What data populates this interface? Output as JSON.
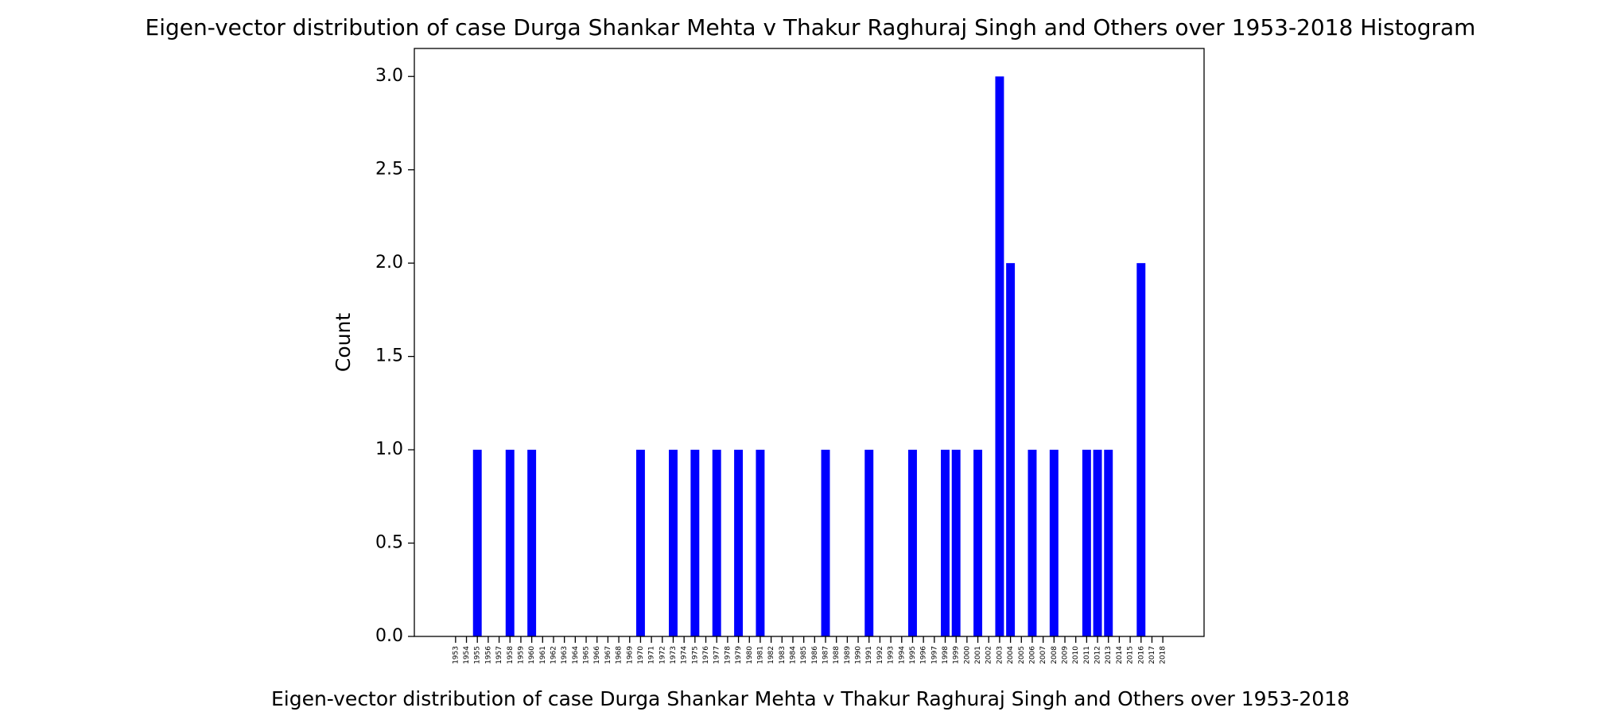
{
  "chart_data": {
    "type": "bar",
    "title": "Eigen-vector distribution of case Durga Shankar Mehta v Thakur Raghuraj Singh and Others over 1953-2018 Histogram",
    "xlabel": "Eigen-vector distribution of case Durga Shankar Mehta v Thakur Raghuraj Singh and Others over 1953-2018",
    "ylabel": "Count",
    "categories": [
      "1953",
      "1954",
      "1955",
      "1956",
      "1957",
      "1958",
      "1959",
      "1960",
      "1961",
      "1962",
      "1963",
      "1964",
      "1965",
      "1966",
      "1967",
      "1968",
      "1969",
      "1970",
      "1971",
      "1972",
      "1973",
      "1974",
      "1975",
      "1976",
      "1977",
      "1978",
      "1979",
      "1980",
      "1981",
      "1982",
      "1983",
      "1984",
      "1985",
      "1986",
      "1987",
      "1988",
      "1989",
      "1990",
      "1991",
      "1992",
      "1993",
      "1994",
      "1995",
      "1996",
      "1997",
      "1998",
      "1999",
      "2000",
      "2001",
      "2002",
      "2003",
      "2004",
      "2005",
      "2006",
      "2007",
      "2008",
      "2009",
      "2010",
      "2011",
      "2012",
      "2013",
      "2014",
      "2015",
      "2016",
      "2017",
      "2018"
    ],
    "values": [
      0,
      0,
      1,
      0,
      0,
      1,
      0,
      1,
      0,
      0,
      0,
      0,
      0,
      0,
      0,
      0,
      0,
      1,
      0,
      0,
      1,
      0,
      1,
      0,
      1,
      0,
      1,
      0,
      1,
      0,
      0,
      0,
      0,
      0,
      1,
      0,
      0,
      0,
      1,
      0,
      0,
      0,
      1,
      0,
      0,
      1,
      1,
      0,
      1,
      0,
      3,
      2,
      0,
      1,
      0,
      1,
      0,
      0,
      1,
      1,
      1,
      0,
      0,
      2,
      0,
      0
    ],
    "color": "#0000ff",
    "ylim": [
      0,
      3.15
    ],
    "yticks": [
      {
        "value": 0,
        "label": "0.0"
      },
      {
        "value": 0.5,
        "label": "0.5"
      },
      {
        "value": 1,
        "label": "1.0"
      },
      {
        "value": 1.5,
        "label": "1.5"
      },
      {
        "value": 2,
        "label": "2.0"
      },
      {
        "value": 2.5,
        "label": "2.5"
      },
      {
        "value": 3,
        "label": "3.0"
      }
    ],
    "grid": false
  }
}
